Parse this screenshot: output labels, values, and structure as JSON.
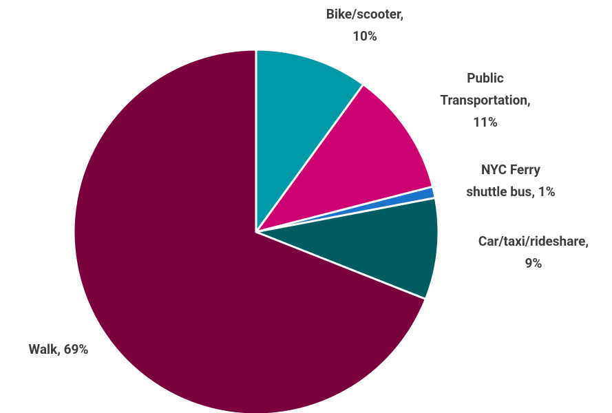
{
  "chart_data": {
    "type": "pie",
    "categories": [
      "Bike/scooter",
      "Public Transportation",
      "NYC Ferry shuttle bus",
      "Car/taxi/rideshare",
      "Walk"
    ],
    "values": [
      10,
      11,
      1,
      9,
      69
    ],
    "value_labels": [
      [
        "Bike/scooter,",
        "10%"
      ],
      [
        "Public",
        "Transportation,",
        "11%"
      ],
      [
        "NYC Ferry",
        "shuttle bus, 1%"
      ],
      [
        "Car/taxi/rideshare,",
        "9%"
      ],
      [
        "Walk, 69%"
      ]
    ],
    "colors": [
      "#0099a8",
      "#cc0071",
      "#1b74c9",
      "#005c63",
      "#7a003d"
    ]
  }
}
